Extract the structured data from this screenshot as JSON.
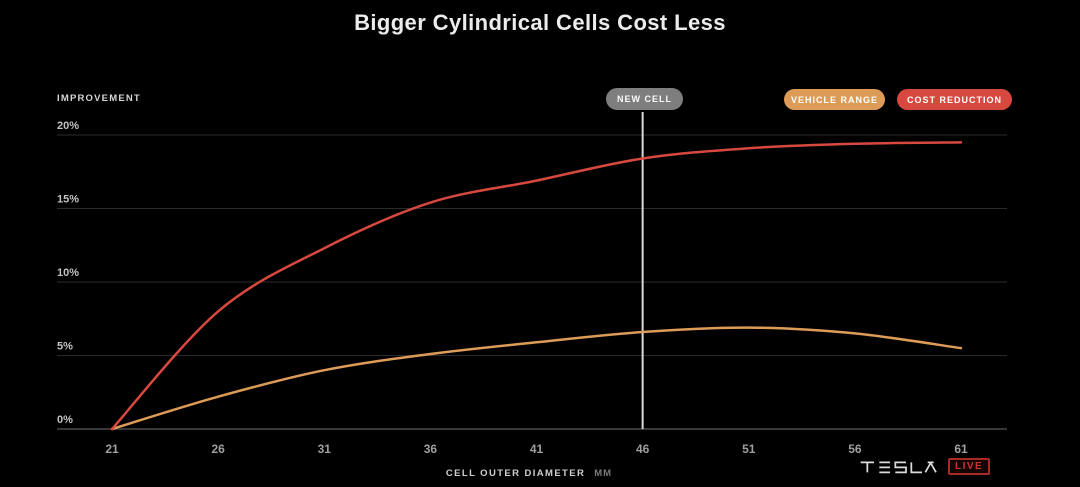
{
  "title": "Bigger Cylindrical Cells Cost Less",
  "footer": {
    "brand": "TESLA",
    "live_label": "LIVE"
  },
  "colors": {
    "background": "#000000",
    "title_text": "#ececec",
    "accent_red": "#d7483e",
    "accent_orange": "#dc9b57",
    "pill_gray": "#7e7e7e",
    "grid_line": "#2b2b2b",
    "axis_line": "#4a4a4a",
    "y_tick_text": "#c3c3c3",
    "x_tick_text": "#9f9f9f",
    "marker_line": "#d9d9d9"
  },
  "chart_data": {
    "type": "line",
    "title": "Bigger Cylindrical Cells Cost Less",
    "xlabel": "CELL OUTER DIAMETER",
    "x_unit": "MM",
    "ylabel": "IMPROVEMENT",
    "xlim": [
      21,
      61
    ],
    "ylim": [
      0,
      20
    ],
    "x_ticks": [
      21,
      26,
      31,
      36,
      41,
      46,
      51,
      56,
      61
    ],
    "y_ticks": [
      0,
      5,
      10,
      15,
      20
    ],
    "y_tick_suffix": "%",
    "grid": "horizontal",
    "legend_position": "top-right",
    "x": [
      21,
      26,
      31,
      36,
      41,
      46,
      51,
      56,
      61
    ],
    "series": [
      {
        "name": "VEHICLE RANGE",
        "color": "#dc9b57",
        "values": [
          0,
          2.2,
          4.0,
          5.1,
          5.9,
          6.6,
          6.9,
          6.5,
          5.5
        ]
      },
      {
        "name": "COST REDUCTION",
        "color": "#d7483e",
        "values": [
          0,
          8.0,
          12.3,
          15.4,
          16.9,
          18.4,
          19.1,
          19.4,
          19.5
        ]
      }
    ],
    "marker": {
      "label": "NEW CELL",
      "x": 46
    }
  }
}
